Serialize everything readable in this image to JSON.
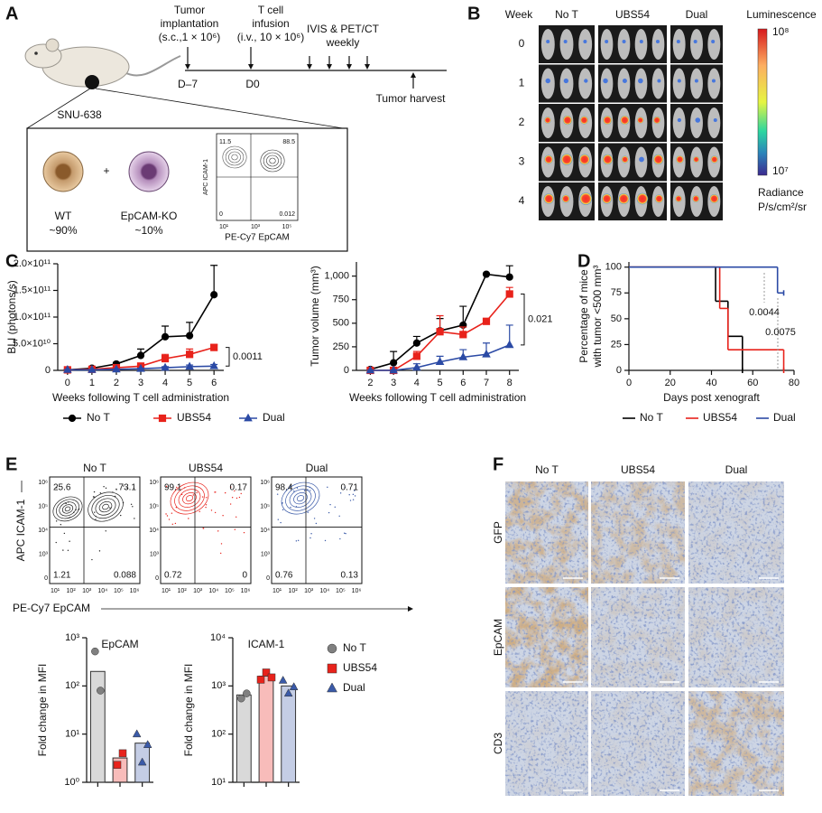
{
  "panel_labels": {
    "a": "A",
    "b": "B",
    "c": "C",
    "d": "D",
    "e": "E",
    "f": "F"
  },
  "schematic": {
    "implant": "Tumor",
    "implant2": "implantation",
    "implant3": "(s.c.,1 × 10⁶)",
    "infusion": "T cell",
    "infusion2": "infusion",
    "infusion3": "(i.v., 10 × 10⁶)",
    "imaging": "IVIS & PET/CT",
    "imaging2": "weekly",
    "day_start": "D–7",
    "day_zero": "D0",
    "harvest": "Tumor harvest",
    "cell_line": "SNU-638",
    "wt": "WT",
    "wt_pct": "~90%",
    "plus": "+",
    "ko": "EpCAM-KO",
    "ko_pct": "~10%",
    "mini_flow": {
      "q_ul": "11.5",
      "q_ur": "88.5",
      "q_ll": "0",
      "q_lr": "0.012",
      "ylabel": "APC ICAM-1",
      "xlabel": "PE-Cy7 EpCAM",
      "ticks": [
        "10¹",
        "10³",
        "10⁵"
      ]
    }
  },
  "imaging": {
    "week": "Week",
    "weeks": [
      "0",
      "1",
      "2",
      "3",
      "4"
    ],
    "groups": [
      "No T",
      "UBS54",
      "Dual"
    ],
    "colorbar_title": "Luminescence",
    "colorbar_max": "10⁸",
    "colorbar_min": "10⁷",
    "unit": "Radiance",
    "unit2": "P/s/cm²/sr"
  },
  "chart_data": [
    {
      "type": "line",
      "ylabel": "BLI (photons/s)",
      "xlabel": "Weeks following T cell administration",
      "x": [
        0,
        1,
        2,
        3,
        4,
        5,
        6
      ],
      "xlim": [
        -0.4,
        6.4
      ],
      "xticks": [
        0,
        1,
        2,
        3,
        4,
        5,
        6
      ],
      "ylim": [
        0,
        200000000000
      ],
      "yticks": [
        0,
        {
          "value": 50000000000,
          "label": "5.0×10¹⁰"
        },
        {
          "value": 100000000000,
          "label": "1.0×10¹¹"
        },
        {
          "value": 150000000000,
          "label": "1.5×10¹¹"
        },
        {
          "value": 200000000000,
          "label": "2.0×10¹¹"
        }
      ],
      "series": [
        {
          "name": "No T",
          "color": "#000000",
          "marker": "circle",
          "values": [
            1000000000,
            4000000000,
            12000000000,
            28000000000,
            63000000000,
            65000000000,
            142000000000
          ],
          "errors": [
            500000000,
            1000000000,
            3000000000,
            12000000000,
            20000000000,
            25000000000,
            55000000000
          ]
        },
        {
          "name": "UBS54",
          "color": "#e8221b",
          "marker": "square",
          "values": [
            1000000000,
            2000000000,
            5000000000,
            8000000000,
            22000000000,
            30000000000,
            43000000000
          ],
          "errors": [
            500000000,
            500000000,
            1000000000,
            2000000000,
            8000000000,
            10000000000,
            5000000000
          ]
        },
        {
          "name": "Dual",
          "color": "#2b4aa5",
          "marker": "triangle",
          "values": [
            1000000000,
            1000000000,
            2000000000,
            3000000000,
            5000000000,
            7000000000,
            8000000000
          ],
          "errors": [
            500000000,
            500000000,
            500000000,
            1000000000,
            2000000000,
            3000000000,
            3000000000
          ]
        }
      ],
      "annotation": "0.0011"
    },
    {
      "type": "line",
      "ylabel": "Tumor volume (mm³)",
      "xlabel": "Weeks following T cell administration",
      "x": [
        2,
        3,
        4,
        5,
        6,
        7,
        8
      ],
      "xlim": [
        1.4,
        8.4
      ],
      "xticks": [
        2,
        3,
        4,
        5,
        6,
        7,
        8
      ],
      "ylim": [
        0,
        1150
      ],
      "yticks": [
        0,
        250,
        500,
        750,
        {
          "value": 1000,
          "label": "1,000"
        }
      ],
      "series": [
        {
          "color": "#000000",
          "marker": "circle",
          "values": [
            10,
            80,
            290,
            420,
            480,
            1020,
            990
          ],
          "errors": [
            20,
            120,
            70,
            130,
            200,
            10,
            120
          ]
        },
        {
          "color": "#e8221b",
          "marker": "square",
          "values": [
            0,
            0,
            150,
            410,
            380,
            520,
            810
          ],
          "errors": [
            0,
            0,
            50,
            170,
            80,
            20,
            70
          ]
        },
        {
          "color": "#2b4aa5",
          "marker": "triangle",
          "values": [
            0,
            0,
            30,
            90,
            140,
            170,
            270
          ],
          "errors": [
            0,
            0,
            40,
            60,
            80,
            120,
            210
          ]
        }
      ],
      "annotation": "0.021"
    },
    {
      "type": "step",
      "ylabel": [
        "Percentage of mice",
        "with tumor <500 mm³"
      ],
      "xlabel": "Days post xenograft",
      "xlim": [
        0,
        80
      ],
      "xticks": [
        0,
        20,
        40,
        60,
        80
      ],
      "ylim": [
        0,
        105
      ],
      "yticks": [
        0,
        25,
        50,
        75,
        100
      ],
      "series": [
        {
          "name": "No T",
          "color": "#000000",
          "x": [
            0,
            42,
            48,
            55
          ],
          "values": [
            100,
            67,
            33,
            0
          ]
        },
        {
          "name": "UBS54",
          "color": "#e8221b",
          "x": [
            0,
            44,
            48,
            75
          ],
          "values": [
            100,
            60,
            20,
            0
          ]
        },
        {
          "name": "Dual",
          "color": "#2b4aa5",
          "x": [
            0,
            72,
            75
          ],
          "values": [
            100,
            75,
            75
          ]
        }
      ],
      "annotations": [
        "0.0044",
        "0.0075"
      ]
    },
    {
      "type": "bar",
      "title": "EpCAM",
      "ylabel": "Fold change in MFI",
      "log": true,
      "ylim": [
        1,
        1000
      ],
      "yticks": [
        {
          "value": 1,
          "label": "10⁰"
        },
        {
          "value": 10,
          "label": "10¹"
        },
        {
          "value": 100,
          "label": "10²"
        },
        {
          "value": 1000,
          "label": "10³"
        }
      ],
      "series": [
        {
          "name": "No T",
          "color": "#808080",
          "marker": "circle",
          "values": [
            200
          ],
          "points": [
            520,
            80
          ]
        },
        {
          "name": "UBS54",
          "color": "#e8221b",
          "marker": "square",
          "values": [
            3.2
          ],
          "points": [
            2.3,
            4
          ]
        },
        {
          "name": "Dual",
          "color": "#3a5aa8",
          "marker": "triangle",
          "values": [
            6.5
          ],
          "points": [
            10,
            2.6,
            6
          ]
        }
      ]
    },
    {
      "type": "bar",
      "title": "ICAM-1",
      "ylabel": "Fold change in MFI",
      "log": true,
      "ylim": [
        10,
        10000
      ],
      "yticks": [
        {
          "value": 10,
          "label": "10¹"
        },
        {
          "value": 100,
          "label": "10²"
        },
        {
          "value": 1000,
          "label": "10³"
        },
        {
          "value": 10000,
          "label": "10⁴"
        }
      ],
      "series": [
        {
          "color": "#808080",
          "marker": "circle",
          "values": [
            650
          ],
          "points": [
            550,
            700
          ]
        },
        {
          "color": "#e8221b",
          "marker": "square",
          "values": [
            1600
          ],
          "points": [
            1350,
            1900,
            1500
          ]
        },
        {
          "color": "#3a5aa8",
          "marker": "triangle",
          "values": [
            1000
          ],
          "points": [
            1300,
            700,
            950
          ]
        }
      ]
    }
  ],
  "flow": {
    "plots": [
      {
        "name": "No T",
        "quadrants": [
          "25.6",
          "73.1",
          "1.21",
          "0.088"
        ]
      },
      {
        "name": "UBS54",
        "quadrants": [
          "99.1",
          "0.17",
          "0.72",
          "0"
        ]
      },
      {
        "name": "Dual",
        "quadrants": [
          "98.4",
          "0.71",
          "0.76",
          "0.13"
        ]
      }
    ],
    "ylabel": "APC ICAM-1",
    "xlabel": "PE-Cy7 EpCAM",
    "xticks": [
      "10¹",
      "10²",
      "10³",
      "10⁴",
      "10⁵",
      "10⁶"
    ],
    "yticks": [
      "10⁶",
      "10⁵",
      "10⁴",
      "10³",
      "0"
    ]
  },
  "ihc": {
    "columns": [
      "No T",
      "UBS54",
      "Dual"
    ],
    "rows": [
      "GFP",
      "EpCAM",
      "CD3"
    ]
  }
}
